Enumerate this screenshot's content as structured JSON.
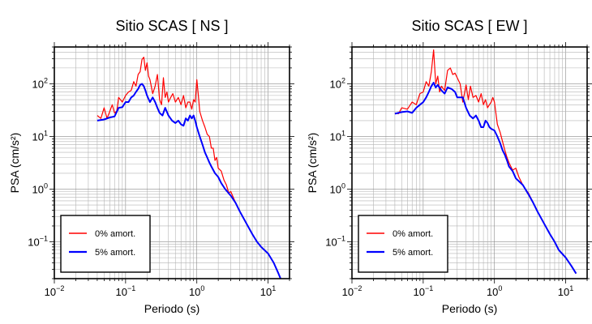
{
  "chart_data": [
    {
      "type": "line",
      "title": "Sitio SCAS [ NS ]",
      "xlabel": "Periodo (s)",
      "ylabel": "PSA (cm/s²)",
      "xscale": "log",
      "yscale": "log",
      "xlim": [
        0.01,
        20
      ],
      "ylim": [
        0.02,
        500
      ],
      "grid": true,
      "legend_position": "bottom-left",
      "xticks": [
        {
          "base": "10",
          "exp": "−2"
        },
        {
          "base": "10",
          "exp": "−1"
        },
        {
          "base": "10",
          "exp": "0"
        },
        {
          "base": "10",
          "exp": "1"
        }
      ],
      "yticks": [
        {
          "base": "10",
          "exp": "−1"
        },
        {
          "base": "10",
          "exp": "0"
        },
        {
          "base": "10",
          "exp": "1"
        },
        {
          "base": "10",
          "exp": "2"
        }
      ],
      "series": [
        {
          "name": "0% amort.",
          "color": "#ff0000",
          "x": [
            0.04,
            0.045,
            0.05,
            0.055,
            0.06,
            0.065,
            0.07,
            0.075,
            0.08,
            0.09,
            0.1,
            0.11,
            0.12,
            0.13,
            0.14,
            0.15,
            0.16,
            0.17,
            0.18,
            0.19,
            0.2,
            0.21,
            0.22,
            0.24,
            0.26,
            0.28,
            0.3,
            0.32,
            0.34,
            0.36,
            0.38,
            0.4,
            0.43,
            0.46,
            0.5,
            0.55,
            0.6,
            0.65,
            0.7,
            0.75,
            0.8,
            0.85,
            0.9,
            0.95,
            1.0,
            1.05,
            1.1,
            1.2,
            1.3,
            1.4,
            1.5,
            1.6,
            1.7,
            1.8,
            1.9,
            2.0,
            2.2,
            2.4,
            2.6,
            2.8,
            3.0,
            3.5,
            4.0,
            5.0,
            6.0,
            7.0,
            8.0,
            10.0,
            12.0,
            14.0,
            15.0
          ],
          "y": [
            25,
            22,
            35,
            22,
            30,
            40,
            28,
            30,
            55,
            45,
            60,
            70,
            75,
            110,
            90,
            150,
            170,
            290,
            320,
            180,
            250,
            140,
            120,
            65,
            90,
            150,
            50,
            40,
            130,
            55,
            70,
            45,
            55,
            65,
            45,
            55,
            40,
            60,
            35,
            45,
            45,
            33,
            50,
            45,
            120,
            60,
            30,
            20,
            15,
            11,
            10,
            6,
            6,
            3.5,
            4,
            2.5,
            2.2,
            1.5,
            1.2,
            0.85,
            0.9,
            0.55,
            0.38,
            0.22,
            0.14,
            0.1,
            0.08,
            0.06,
            0.04,
            0.025,
            0.02
          ]
        },
        {
          "name": "5% amort.",
          "color": "#0000ff",
          "x": [
            0.04,
            0.05,
            0.06,
            0.07,
            0.08,
            0.09,
            0.1,
            0.11,
            0.12,
            0.13,
            0.14,
            0.15,
            0.16,
            0.17,
            0.18,
            0.19,
            0.2,
            0.22,
            0.24,
            0.26,
            0.28,
            0.3,
            0.33,
            0.36,
            0.4,
            0.45,
            0.5,
            0.55,
            0.6,
            0.65,
            0.7,
            0.75,
            0.8,
            0.85,
            0.9,
            0.95,
            1.0,
            1.1,
            1.2,
            1.3,
            1.4,
            1.5,
            1.6,
            1.8,
            2.0,
            2.2,
            2.5,
            3.0,
            3.5,
            4.0,
            5.0,
            6.0,
            7.0,
            8.0,
            10.0,
            12.0,
            14.0,
            15.0
          ],
          "y": [
            20,
            21,
            23,
            24,
            35,
            36,
            45,
            45,
            55,
            60,
            70,
            80,
            95,
            100,
            90,
            75,
            60,
            45,
            55,
            45,
            35,
            28,
            25,
            35,
            25,
            20,
            18,
            20,
            17,
            16,
            22,
            20,
            25,
            22,
            25,
            20,
            15,
            10,
            7,
            5,
            4,
            3.2,
            2.7,
            2.0,
            1.7,
            1.3,
            1.0,
            0.75,
            0.55,
            0.38,
            0.22,
            0.14,
            0.1,
            0.08,
            0.06,
            0.04,
            0.025,
            0.02
          ]
        }
      ]
    },
    {
      "type": "line",
      "title": "Sitio SCAS [ EW ]",
      "xlabel": "Periodo (s)",
      "ylabel": "PSA (cm/s²)",
      "xscale": "log",
      "yscale": "log",
      "xlim": [
        0.01,
        20
      ],
      "ylim": [
        0.02,
        500
      ],
      "grid": true,
      "legend_position": "bottom-left",
      "xticks": [
        {
          "base": "10",
          "exp": "−2"
        },
        {
          "base": "10",
          "exp": "−1"
        },
        {
          "base": "10",
          "exp": "0"
        },
        {
          "base": "10",
          "exp": "1"
        }
      ],
      "yticks": [
        {
          "base": "10",
          "exp": "−1"
        },
        {
          "base": "10",
          "exp": "0"
        },
        {
          "base": "10",
          "exp": "1"
        },
        {
          "base": "10",
          "exp": "2"
        }
      ],
      "series": [
        {
          "name": "0% amort.",
          "color": "#ff0000",
          "x": [
            0.04,
            0.045,
            0.05,
            0.06,
            0.07,
            0.08,
            0.09,
            0.1,
            0.11,
            0.12,
            0.13,
            0.14,
            0.15,
            0.16,
            0.17,
            0.18,
            0.2,
            0.22,
            0.24,
            0.26,
            0.28,
            0.3,
            0.33,
            0.36,
            0.4,
            0.43,
            0.46,
            0.5,
            0.55,
            0.6,
            0.65,
            0.7,
            0.75,
            0.8,
            0.85,
            0.9,
            0.95,
            1.0,
            1.1,
            1.2,
            1.3,
            1.4,
            1.5,
            1.6,
            1.8,
            2.0,
            2.2,
            2.5,
            2.8,
            3.0,
            3.5,
            4.0,
            5.0,
            6.0,
            7.0,
            8.0,
            10.0,
            12.0,
            14.0
          ],
          "y": [
            28,
            27,
            35,
            33,
            45,
            40,
            65,
            70,
            110,
            90,
            170,
            440,
            100,
            140,
            70,
            90,
            75,
            180,
            200,
            150,
            160,
            130,
            100,
            45,
            95,
            50,
            90,
            55,
            60,
            45,
            65,
            40,
            50,
            35,
            40,
            45,
            55,
            45,
            17,
            12,
            8,
            5.5,
            4,
            3.2,
            2.3,
            2.5,
            1.7,
            1.2,
            0.95,
            0.85,
            0.55,
            0.38,
            0.22,
            0.14,
            0.1,
            0.07,
            0.05,
            0.035,
            0.025
          ]
        },
        {
          "name": "5% amort.",
          "color": "#0000ff",
          "x": [
            0.04,
            0.05,
            0.06,
            0.07,
            0.08,
            0.09,
            0.1,
            0.11,
            0.12,
            0.13,
            0.14,
            0.15,
            0.16,
            0.18,
            0.2,
            0.22,
            0.25,
            0.28,
            0.3,
            0.33,
            0.36,
            0.4,
            0.45,
            0.5,
            0.55,
            0.6,
            0.65,
            0.7,
            0.75,
            0.8,
            0.85,
            0.9,
            1.0,
            1.1,
            1.2,
            1.3,
            1.4,
            1.5,
            1.6,
            1.8,
            2.0,
            2.5,
            3.0,
            3.5,
            4.0,
            5.0,
            6.0,
            7.0,
            8.0,
            10.0,
            12.0,
            14.0
          ],
          "y": [
            27,
            29,
            30,
            28,
            35,
            40,
            45,
            55,
            70,
            90,
            105,
            85,
            95,
            75,
            65,
            85,
            80,
            70,
            55,
            55,
            55,
            35,
            25,
            22,
            25,
            20,
            15,
            15,
            20,
            18,
            15,
            14,
            13,
            10,
            7.5,
            5.5,
            4.5,
            3.5,
            2.7,
            2.2,
            1.6,
            1.2,
            0.8,
            0.55,
            0.38,
            0.22,
            0.14,
            0.1,
            0.07,
            0.05,
            0.035,
            0.025
          ]
        }
      ]
    }
  ]
}
